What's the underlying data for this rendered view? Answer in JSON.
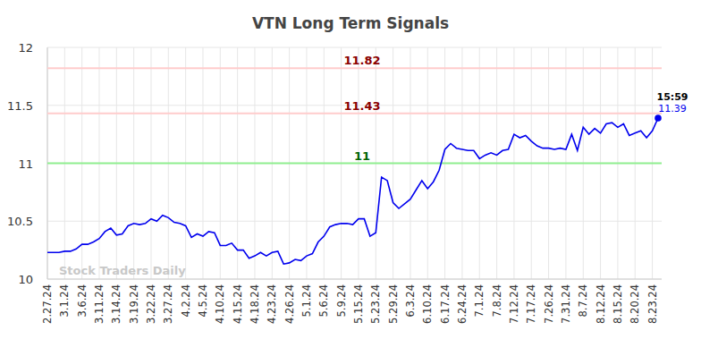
{
  "chart_data": {
    "type": "line",
    "title": "VTN Long Term Signals",
    "categories": [
      "2.27.24",
      null,
      null,
      "3.1.24",
      null,
      null,
      "3.6.24",
      null,
      null,
      "3.11.24",
      null,
      null,
      "3.14.24",
      null,
      null,
      "3.19.24",
      null,
      null,
      "3.22.24",
      null,
      null,
      "3.27.24",
      null,
      null,
      "4.2.24",
      null,
      null,
      "4.5.24",
      null,
      null,
      "4.10.24",
      null,
      null,
      "4.15.24",
      null,
      null,
      "4.18.24",
      null,
      null,
      "4.23.24",
      null,
      null,
      "4.26.24",
      null,
      null,
      "5.1.24",
      null,
      null,
      "5.6.24",
      null,
      null,
      "5.9.24",
      null,
      null,
      "5.15.24",
      null,
      null,
      "5.23.24",
      null,
      null,
      "5.29.24",
      null,
      null,
      "6.3.24",
      null,
      null,
      "6.10.24",
      null,
      null,
      "6.17.24",
      null,
      null,
      "6.24.24",
      null,
      null,
      "7.1.24",
      null,
      null,
      "7.8.24",
      null,
      null,
      "7.12.24",
      null,
      null,
      "7.17.24",
      null,
      null,
      "7.26.24",
      null,
      null,
      "7.31.24",
      null,
      null,
      "8.7.24",
      null,
      null,
      "8.12.24",
      null,
      null,
      "8.15.24",
      null,
      null,
      "8.20.24",
      null,
      null,
      "8.23.24",
      null
    ],
    "values": [
      10.23,
      10.23,
      10.23,
      10.24,
      10.24,
      10.26,
      10.3,
      10.3,
      10.32,
      10.35,
      10.41,
      10.44,
      10.38,
      10.39,
      10.46,
      10.48,
      10.47,
      10.48,
      10.52,
      10.5,
      10.55,
      10.53,
      10.49,
      10.48,
      10.46,
      10.36,
      10.39,
      10.37,
      10.41,
      10.4,
      10.29,
      10.29,
      10.31,
      10.25,
      10.25,
      10.18,
      10.2,
      10.23,
      10.2,
      10.23,
      10.24,
      10.13,
      10.14,
      10.17,
      10.16,
      10.2,
      10.22,
      10.32,
      10.37,
      10.45,
      10.47,
      10.48,
      10.48,
      10.47,
      10.52,
      10.52,
      10.37,
      10.4,
      10.88,
      10.85,
      10.66,
      10.61,
      10.65,
      10.69,
      10.77,
      10.85,
      10.78,
      10.84,
      10.94,
      11.12,
      11.17,
      11.13,
      11.12,
      11.11,
      11.11,
      11.04,
      11.07,
      11.09,
      11.07,
      11.11,
      11.12,
      11.25,
      11.22,
      11.24,
      11.19,
      11.15,
      11.13,
      11.13,
      11.12,
      11.13,
      11.12,
      11.25,
      11.11,
      11.31,
      11.25,
      11.3,
      11.26,
      11.34,
      11.35,
      11.31,
      11.34,
      11.24,
      11.26,
      11.28,
      11.22,
      11.28,
      11.39
    ],
    "color": "#0000ee",
    "ylim": [
      10,
      12
    ],
    "yticks": [
      10,
      10.5,
      11,
      11.5,
      12
    ],
    "grid": true,
    "reference_lines": [
      {
        "value": 11.82,
        "color": "#ffcccc",
        "label_color": "#8b0000"
      },
      {
        "value": 11.43,
        "color": "#ffcccc",
        "label_color": "#8b0000"
      },
      {
        "value": 11,
        "color": "#90ee90",
        "label_color": "#006400"
      }
    ],
    "last_time": "15:59",
    "watermark": "Stock Traders Daily"
  }
}
